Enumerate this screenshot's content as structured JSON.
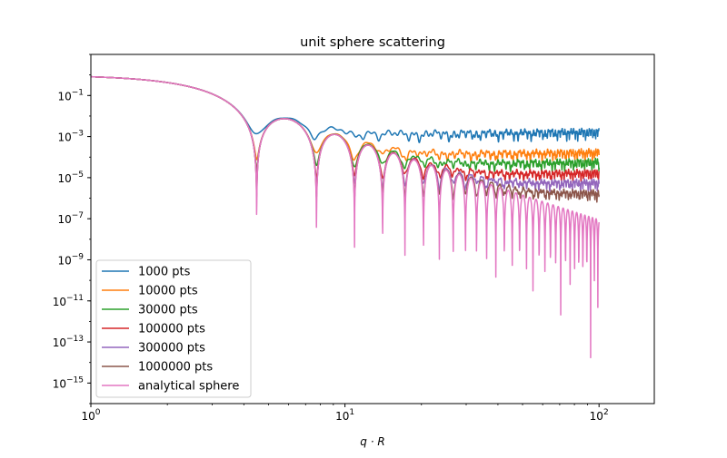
{
  "chart_data": {
    "type": "line",
    "title": "unit sphere scattering",
    "xlabel": "q · R",
    "ylabel": "",
    "xscale": "log",
    "yscale": "log",
    "xlim": [
      1,
      165
    ],
    "ylim": [
      1e-16,
      10
    ],
    "grid": false,
    "legend_position": "lower-left",
    "x_ticks": [
      {
        "value": 1,
        "base": "10",
        "exp": "0"
      },
      {
        "value": 10,
        "base": "10",
        "exp": "1"
      },
      {
        "value": 100,
        "base": "10",
        "exp": "2"
      }
    ],
    "y_ticks": [
      {
        "value": 0.1,
        "base": "10",
        "exp": "−1"
      },
      {
        "value": 0.001,
        "base": "10",
        "exp": "−3"
      },
      {
        "value": 1e-05,
        "base": "10",
        "exp": "−5"
      },
      {
        "value": 1e-07,
        "base": "10",
        "exp": "−7"
      },
      {
        "value": 1e-09,
        "base": "10",
        "exp": "−9"
      },
      {
        "value": 1e-11,
        "base": "10",
        "exp": "−11"
      },
      {
        "value": 1e-13,
        "base": "10",
        "exp": "−13"
      },
      {
        "value": 1e-15,
        "base": "10",
        "exp": "−15"
      }
    ],
    "x_range_plotted": [
      1,
      100
    ],
    "series": [
      {
        "name": "1000 pts",
        "color": "#1f77b4",
        "n_points": 1000,
        "plateau": 0.0018,
        "values_at": {
          "x": [
            1,
            4.49,
            5.76,
            7.7,
            9.1,
            12,
            20,
            50,
            100
          ],
          "y": [
            0.85,
            0.00013,
            0.0075,
            0.0004,
            0.0017,
            0.0008,
            0.0015,
            0.0018,
            0.0019
          ]
        }
      },
      {
        "name": "10000 pts",
        "color": "#ff7f0e",
        "n_points": 10000,
        "plateau": 0.00018,
        "values_at": {
          "x": [
            1,
            4.49,
            5.76,
            7.73,
            9.1,
            15,
            20,
            50,
            100
          ],
          "y": [
            0.85,
            0.0001,
            0.0075,
            1.5e-09,
            0.0014,
            8e-05,
            0.0001,
            0.00014,
            0.00018
          ]
        }
      },
      {
        "name": "30000 pts",
        "color": "#2ca02c",
        "n_points": 30000,
        "plateau": 6e-05,
        "values_at": {
          "x": [
            1,
            20,
            25,
            50,
            100
          ],
          "y": [
            0.85,
            5e-05,
            1.2e-05,
            3e-05,
            6e-05
          ]
        }
      },
      {
        "name": "100000 pts",
        "color": "#d62728",
        "n_points": 100000,
        "plateau": 1.8e-05,
        "values_at": {
          "x": [
            1,
            30,
            50,
            100
          ],
          "y": [
            0.85,
            5e-06,
            1e-05,
            1.6e-05
          ]
        }
      },
      {
        "name": "300000 pts",
        "color": "#9467bd",
        "n_points": 300000,
        "plateau": 6e-06,
        "values_at": {
          "x": [
            1,
            50,
            100
          ],
          "y": [
            0.85,
            1.5e-06,
            3.5e-06
          ]
        }
      },
      {
        "name": "1000000 pts",
        "color": "#8c564b",
        "n_points": 1000000,
        "plateau": 1.8e-06,
        "values_at": {
          "x": [
            1,
            70,
            100
          ],
          "y": [
            0.85,
            5e-07,
            6e-07
          ]
        }
      },
      {
        "name": "analytical sphere",
        "color": "#e377c2",
        "n_points": 0,
        "plateau": 0,
        "values_at": {
          "x": [
            1,
            4.49,
            5.76,
            7.73,
            9.1,
            10.9,
            14.07,
            76.8,
            100
          ],
          "y": [
            0.85,
            1.5e-07,
            0.0075,
            1.5e-09,
            0.0014,
            1e-09,
            1e-11,
            1.5e-16,
            2.5e-07
          ]
        }
      }
    ]
  }
}
